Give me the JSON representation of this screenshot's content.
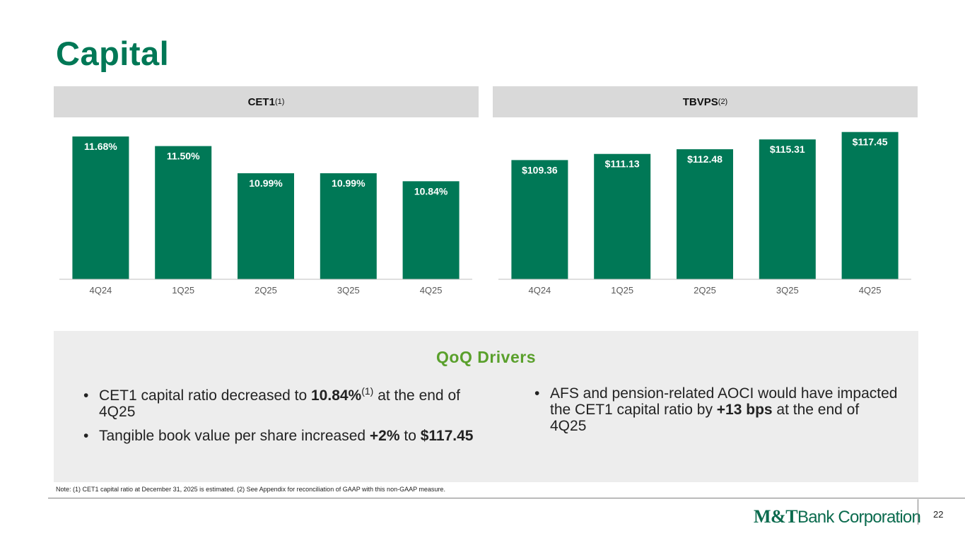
{
  "title": "Capital",
  "cet1_panel": {
    "label": "CET1",
    "superscript": "(1)"
  },
  "tbvps_panel": {
    "label": "TBVPS",
    "superscript": "(2)"
  },
  "chart_data": [
    {
      "type": "bar",
      "title": "CET1(1)",
      "categories": [
        "4Q24",
        "1Q25",
        "2Q25",
        "3Q25",
        "4Q25"
      ],
      "values": [
        11.68,
        11.5,
        10.99,
        10.99,
        10.84
      ],
      "labels": [
        "11.68%",
        "11.50%",
        "10.99%",
        "10.99%",
        "10.84%"
      ],
      "ylim": [
        9.0,
        11.8
      ],
      "xlabel": "",
      "ylabel": "",
      "color": "#007856"
    },
    {
      "type": "bar",
      "title": "TBVPS(2)",
      "categories": [
        "4Q24",
        "1Q25",
        "2Q25",
        "3Q25",
        "4Q25"
      ],
      "values": [
        109.36,
        111.13,
        112.48,
        115.31,
        117.45
      ],
      "labels": [
        "$109.36",
        "$111.13",
        "$112.48",
        "$115.31",
        "$117.45"
      ],
      "ylim": [
        75,
        118
      ],
      "xlabel": "",
      "ylabel": "",
      "color": "#007856"
    }
  ],
  "drivers": {
    "title": "QoQ Drivers",
    "left": [
      {
        "pre": "CET1 capital ratio decreased to ",
        "bold": "10.84%",
        "sup": "(1)",
        "post": " at the end of 4Q25"
      },
      {
        "pre": "Tangible book value per share increased ",
        "bold": "+2%",
        "mid": " to ",
        "bold2": "$117.45"
      }
    ],
    "right": [
      {
        "pre": "AFS and pension-related AOCI would have impacted the CET1 capital ratio by ",
        "bold": "+13 bps",
        "post": " at the end of 4Q25"
      }
    ],
    "bullet": "•"
  },
  "note": "Note: (1) CET1 capital ratio at December 31, 2025 is estimated. (2) See Appendix for reconciliation of GAAP with this non-GAAP measure.",
  "footer": {
    "logo_mt": "M&T",
    "logo_rest": "Bank Corporation",
    "page_number": "22"
  },
  "colors": {
    "brand_green": "#007856",
    "drivers_green": "#5aa02c",
    "panel_gray": "#d9d9d9"
  }
}
